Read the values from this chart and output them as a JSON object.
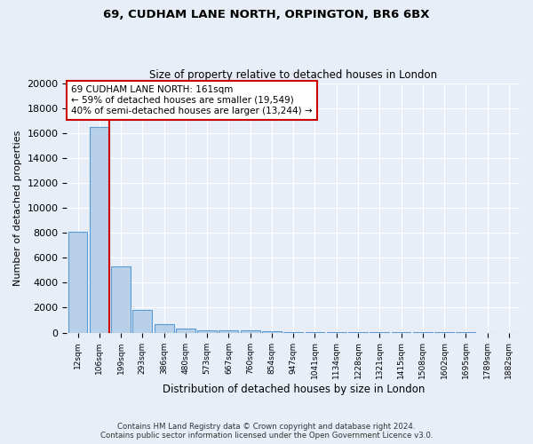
{
  "title1": "69, CUDHAM LANE NORTH, ORPINGTON, BR6 6BX",
  "title2": "Size of property relative to detached houses in London",
  "xlabel": "Distribution of detached houses by size in London",
  "ylabel": "Number of detached properties",
  "footnote1": "Contains HM Land Registry data © Crown copyright and database right 2024.",
  "footnote2": "Contains public sector information licensed under the Open Government Licence v3.0.",
  "categories": [
    "12sqm",
    "106sqm",
    "199sqm",
    "293sqm",
    "386sqm",
    "480sqm",
    "573sqm",
    "667sqm",
    "760sqm",
    "854sqm",
    "947sqm",
    "1041sqm",
    "1134sqm",
    "1228sqm",
    "1321sqm",
    "1415sqm",
    "1508sqm",
    "1602sqm",
    "1695sqm",
    "1789sqm",
    "1882sqm"
  ],
  "values": [
    8100,
    16500,
    5300,
    1850,
    700,
    300,
    220,
    170,
    150,
    100,
    70,
    50,
    40,
    30,
    20,
    15,
    12,
    10,
    8,
    6,
    5
  ],
  "bar_color": "#b8d0e8",
  "bar_edge_color": "#5b9bd5",
  "background_color": "#e8eef8",
  "grid_color": "#ffffff",
  "property_line_color": "#cc0000",
  "annotation_line1": "69 CUDHAM LANE NORTH: 161sqm",
  "annotation_line2": "← 59% of detached houses are smaller (19,549)",
  "annotation_line3": "40% of semi-detached houses are larger (13,244) →",
  "annotation_box_color": "#ffffff",
  "annotation_box_edge": "#cc0000",
  "ylim": [
    0,
    20000
  ],
  "yticks": [
    0,
    2000,
    4000,
    6000,
    8000,
    10000,
    12000,
    14000,
    16000,
    18000,
    20000
  ]
}
